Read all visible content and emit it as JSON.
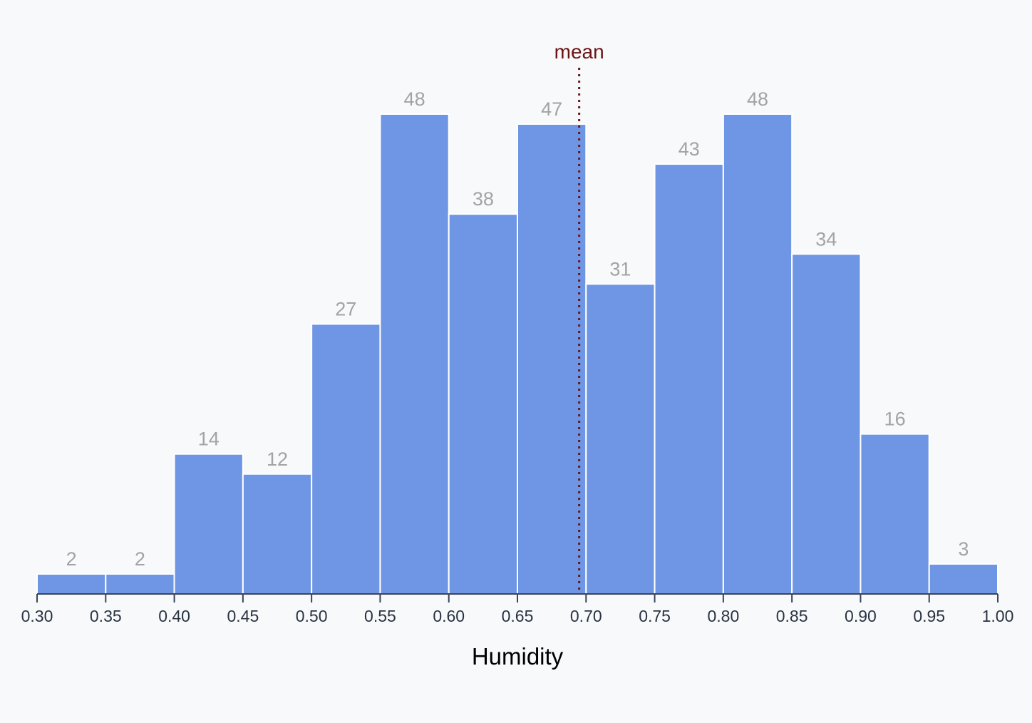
{
  "chart_data": {
    "type": "bar",
    "title": "",
    "xlabel": "Humidity",
    "ylabel": "",
    "bin_edges": [
      0.3,
      0.35,
      0.4,
      0.45,
      0.5,
      0.55,
      0.6,
      0.65,
      0.7,
      0.75,
      0.8,
      0.85,
      0.9,
      0.95,
      1.0
    ],
    "values": [
      2,
      2,
      14,
      12,
      27,
      48,
      38,
      47,
      31,
      43,
      48,
      34,
      16,
      3
    ],
    "x_tick_labels": [
      "0.30",
      "0.35",
      "0.40",
      "0.45",
      "0.50",
      "0.55",
      "0.60",
      "0.65",
      "0.70",
      "0.75",
      "0.80",
      "0.85",
      "0.90",
      "0.95",
      "1.00"
    ],
    "xlim": [
      0.3,
      1.0
    ],
    "ylim": [
      0,
      48
    ],
    "grid": false,
    "mean": {
      "label": "mean",
      "value": 0.695
    },
    "colors": {
      "bar": "#6f96e4",
      "bar_label": "#a3a3a3",
      "mean_line": "#6b1414",
      "background": "#f8f9fb"
    }
  }
}
